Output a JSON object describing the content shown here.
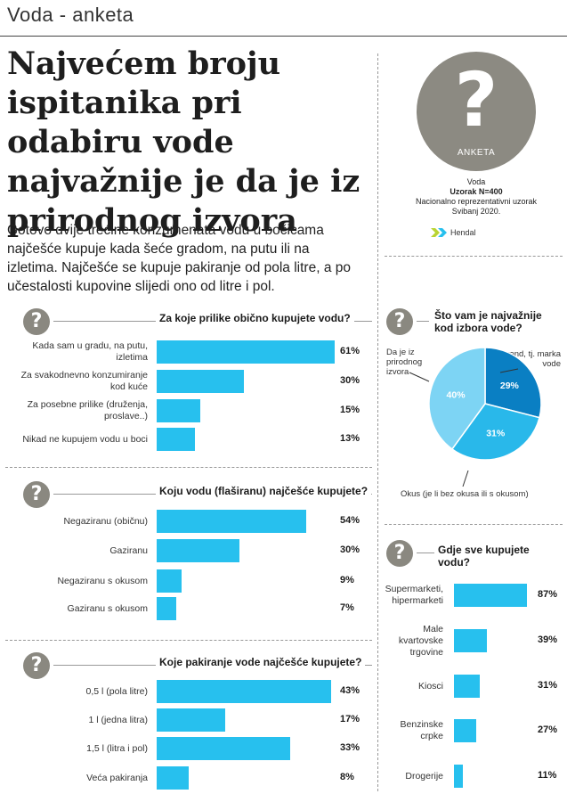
{
  "header": {
    "title": "Voda - anketa"
  },
  "headline": "Najvećem broju ispitanika pri odabiru vode najvažnije je da je iz prirodnog izvora",
  "intro": "Gotovo dvije trećine konzumenata vodu u bočicama najčešće kupuje kada šeće gradom, na putu ili na izletima. Najčešće se kupuje pakiranje od pola litre, a po učestalosti kupovine slijedi ono od litre i pol.",
  "survey": {
    "logo_label": "ANKETA",
    "lines": [
      "Voda",
      "Uzorak N=400",
      "Nacionalno reprezentativni uzorak",
      "Svibanj 2020."
    ],
    "agency": "Hendal"
  },
  "icon": {
    "question": "question-mark-icon",
    "symbol": "?"
  },
  "colors": {
    "bar": "#27c0ee",
    "pie": [
      "#0a7fc3",
      "#29b8ea",
      "#7dd4f4"
    ],
    "badge": "#8a8880"
  },
  "chart_data": [
    {
      "type": "bar",
      "orientation": "horizontal",
      "title": "Za koje prilike obično kupujete vodu?",
      "categories": [
        "Kada sam u gradu, na putu, izletima",
        "Za svakodnevno konzumiranje kod kuće",
        "Za posebne prilike (druženja, proslave..)",
        "Nikad ne kupujem vodu u boci"
      ],
      "values": [
        61,
        30,
        15,
        13
      ],
      "value_labels": [
        "61%",
        "30%",
        "15%",
        "13%"
      ],
      "xlim": [
        0,
        61
      ]
    },
    {
      "type": "bar",
      "orientation": "horizontal",
      "title": "Koju vodu (flaširanu) najčešće kupujete?",
      "categories": [
        "Negaziranu (običnu)",
        "Gaziranu",
        "Negaziranu s okusom",
        "Gaziranu s okusom"
      ],
      "values": [
        54,
        30,
        9,
        7
      ],
      "value_labels": [
        "54%",
        "30%",
        "9%",
        "7%"
      ],
      "xlim": [
        0,
        61
      ]
    },
    {
      "type": "bar",
      "orientation": "horizontal",
      "title": "Koje pakiranje vode najčešće kupujete?",
      "categories": [
        "0,5 l (pola litre)",
        "1 l (jedna litra)",
        "1,5 l (litra i pol)",
        "Veća pakiranja"
      ],
      "values": [
        43,
        17,
        33,
        8
      ],
      "value_labels": [
        "43%",
        "17%",
        "33%",
        "8%"
      ],
      "xlim": [
        0,
        43
      ]
    },
    {
      "type": "pie",
      "title": "Što vam je najvažnije kod izbora vode?",
      "slices": [
        {
          "name": "Brend, tj. marka vode",
          "value": 29,
          "label": "29%"
        },
        {
          "name": "Okus (je li bez okusa ili s okusom)",
          "value": 31,
          "label": "31%"
        },
        {
          "name": "Da je iz prirodnog izvora",
          "value": 40,
          "label": "40%"
        }
      ]
    },
    {
      "type": "bar",
      "orientation": "horizontal",
      "title": "Gdje sve kupujete vodu?",
      "categories": [
        "Supermarketi, hipermarketi",
        "Male kvartovske trgovine",
        "Kiosci",
        "Benzinske crpke",
        "Drogerije"
      ],
      "values": [
        87,
        39,
        31,
        27,
        11
      ],
      "value_labels": [
        "87%",
        "39%",
        "31%",
        "27%",
        "11%"
      ],
      "xlim": [
        0,
        87
      ]
    }
  ]
}
